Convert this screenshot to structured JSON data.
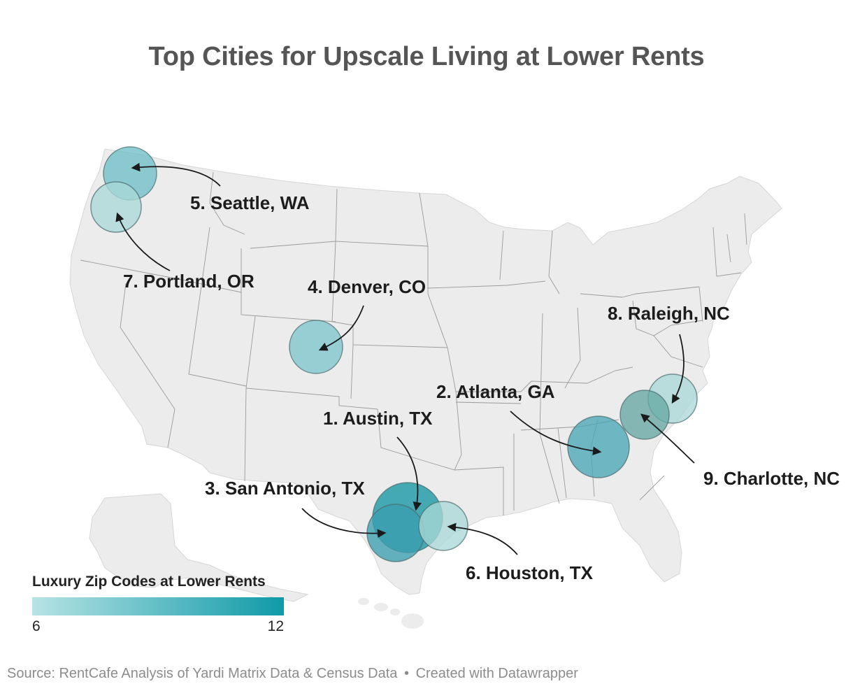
{
  "title": "Top Cities for Upscale Living at Lower Rents",
  "legend": {
    "title": "Luxury Zip Codes at Lower Rents",
    "min_label": "6",
    "max_label": "12",
    "color_min": "#b7e3e4",
    "color_max": "#0f9aa8"
  },
  "cities": [
    {
      "rank": 1,
      "label": "1. Austin, TX",
      "color": "#1496a3"
    },
    {
      "rank": 2,
      "label": "2. Atlanta, GA",
      "color": "#4aa6b6"
    },
    {
      "rank": 3,
      "label": "3. San Antonio, TX",
      "color": "#3b9db0"
    },
    {
      "rank": 4,
      "label": "4. Denver, CO",
      "color": "#7ec5cc"
    },
    {
      "rank": 5,
      "label": "5. Seattle, WA",
      "color": "#70bfc8"
    },
    {
      "rank": 6,
      "label": "6. Houston, TX",
      "color": "#a9d9d7"
    },
    {
      "rank": 7,
      "label": "7. Portland, OR",
      "color": "#a9d9d7"
    },
    {
      "rank": 8,
      "label": "8. Raleigh, NC",
      "color": "#a9d9d7"
    },
    {
      "rank": 9,
      "label": "9. Charlotte, NC",
      "color": "#66a8a4"
    }
  ],
  "source": {
    "text": "Source: RentCafe Analysis of Yardi Matrix Data & Census Data",
    "separator": "•",
    "credit": "Created with Datawrapper"
  },
  "colors": {
    "land": "#ececec",
    "border": "#9a9a9a",
    "arrow": "#1a1a1a"
  }
}
